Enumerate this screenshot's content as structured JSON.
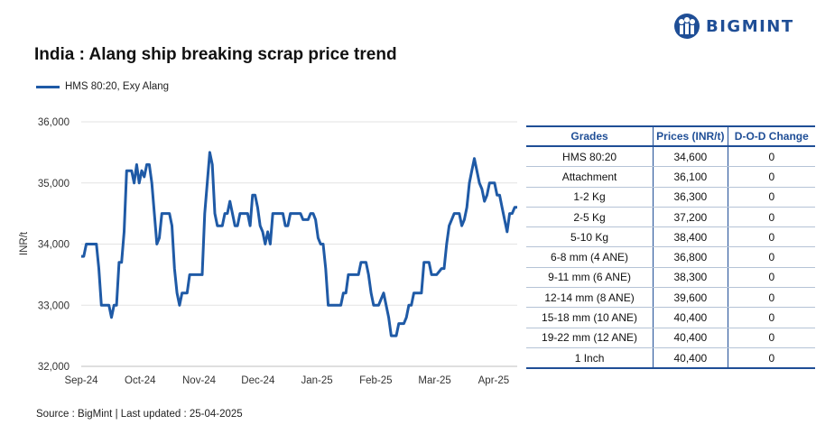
{
  "brand": {
    "name": "BIGMINT",
    "icon": "bigmint-logo-icon"
  },
  "chart_data": {
    "type": "line",
    "title": "India : Alang ship breaking scrap price trend",
    "ylabel": "INR/t",
    "xlabel": "",
    "ylim": [
      32000,
      36000
    ],
    "yticks": [
      32000,
      33000,
      34000,
      35000,
      36000
    ],
    "ytick_labels": [
      "32,000",
      "33,000",
      "34,000",
      "35,000",
      "36,000"
    ],
    "xtick_labels": [
      "Sep-24",
      "Oct-24",
      "Nov-24",
      "Dec-24",
      "Jan-25",
      "Feb-25",
      "Mar-25",
      "Apr-25"
    ],
    "grid": "horizontal",
    "legend_position": "top-left",
    "color": "#1f5aa6",
    "series": [
      {
        "name": "HMS 80:20, Exy Alang",
        "values": [
          33800,
          33800,
          34000,
          34000,
          34000,
          34000,
          34000,
          33600,
          33000,
          33000,
          33000,
          33000,
          32800,
          33000,
          33000,
          33700,
          33700,
          34200,
          35200,
          35200,
          35200,
          35000,
          35300,
          35000,
          35200,
          35100,
          35300,
          35300,
          35000,
          34500,
          34000,
          34100,
          34500,
          34500,
          34500,
          34500,
          34300,
          33600,
          33200,
          33000,
          33200,
          33200,
          33200,
          33500,
          33500,
          33500,
          33500,
          33500,
          33500,
          34500,
          35000,
          35500,
          35300,
          34500,
          34300,
          34300,
          34300,
          34500,
          34500,
          34700,
          34500,
          34300,
          34300,
          34500,
          34500,
          34500,
          34500,
          34300,
          34800,
          34800,
          34600,
          34300,
          34200,
          34000,
          34200,
          34000,
          34500,
          34500,
          34500,
          34500,
          34500,
          34300,
          34300,
          34500,
          34500,
          34500,
          34500,
          34500,
          34400,
          34400,
          34400,
          34500,
          34500,
          34400,
          34100,
          34000,
          34000,
          33600,
          33000,
          33000,
          33000,
          33000,
          33000,
          33000,
          33200,
          33200,
          33500,
          33500,
          33500,
          33500,
          33500,
          33700,
          33700,
          33700,
          33500,
          33200,
          33000,
          33000,
          33000,
          33100,
          33200,
          33000,
          32800,
          32500,
          32500,
          32500,
          32700,
          32700,
          32700,
          32800,
          33000,
          33000,
          33200,
          33200,
          33200,
          33200,
          33700,
          33700,
          33700,
          33500,
          33500,
          33500,
          33550,
          33600,
          33600,
          34000,
          34300,
          34400,
          34500,
          34500,
          34500,
          34300,
          34400,
          34600,
          35000,
          35200,
          35400,
          35200,
          35000,
          34900,
          34700,
          34800,
          35000,
          35000,
          35000,
          34800,
          34800,
          34600,
          34400,
          34200,
          34500,
          34500,
          34600,
          34600
        ]
      }
    ]
  },
  "table": {
    "headers": [
      "Grades",
      "Prices (INR/t)",
      "D-O-D Change"
    ],
    "rows": [
      [
        "HMS 80:20",
        "34,600",
        "0"
      ],
      [
        "Attachment",
        "36,100",
        "0"
      ],
      [
        "1-2 Kg",
        "36,300",
        "0"
      ],
      [
        "2-5 Kg",
        "37,200",
        "0"
      ],
      [
        "5-10 Kg",
        "38,400",
        "0"
      ],
      [
        "6-8 mm (4 ANE)",
        "36,800",
        "0"
      ],
      [
        "9-11 mm (6 ANE)",
        "38,300",
        "0"
      ],
      [
        "12-14 mm (8 ANE)",
        "39,600",
        "0"
      ],
      [
        "15-18 mm (10 ANE)",
        "40,400",
        "0"
      ],
      [
        "19-22 mm (12 ANE)",
        "40,400",
        "0"
      ],
      [
        "1 Inch",
        "40,400",
        "0"
      ]
    ]
  },
  "source": "Source : BigMint | Last updated : 25-04-2025"
}
